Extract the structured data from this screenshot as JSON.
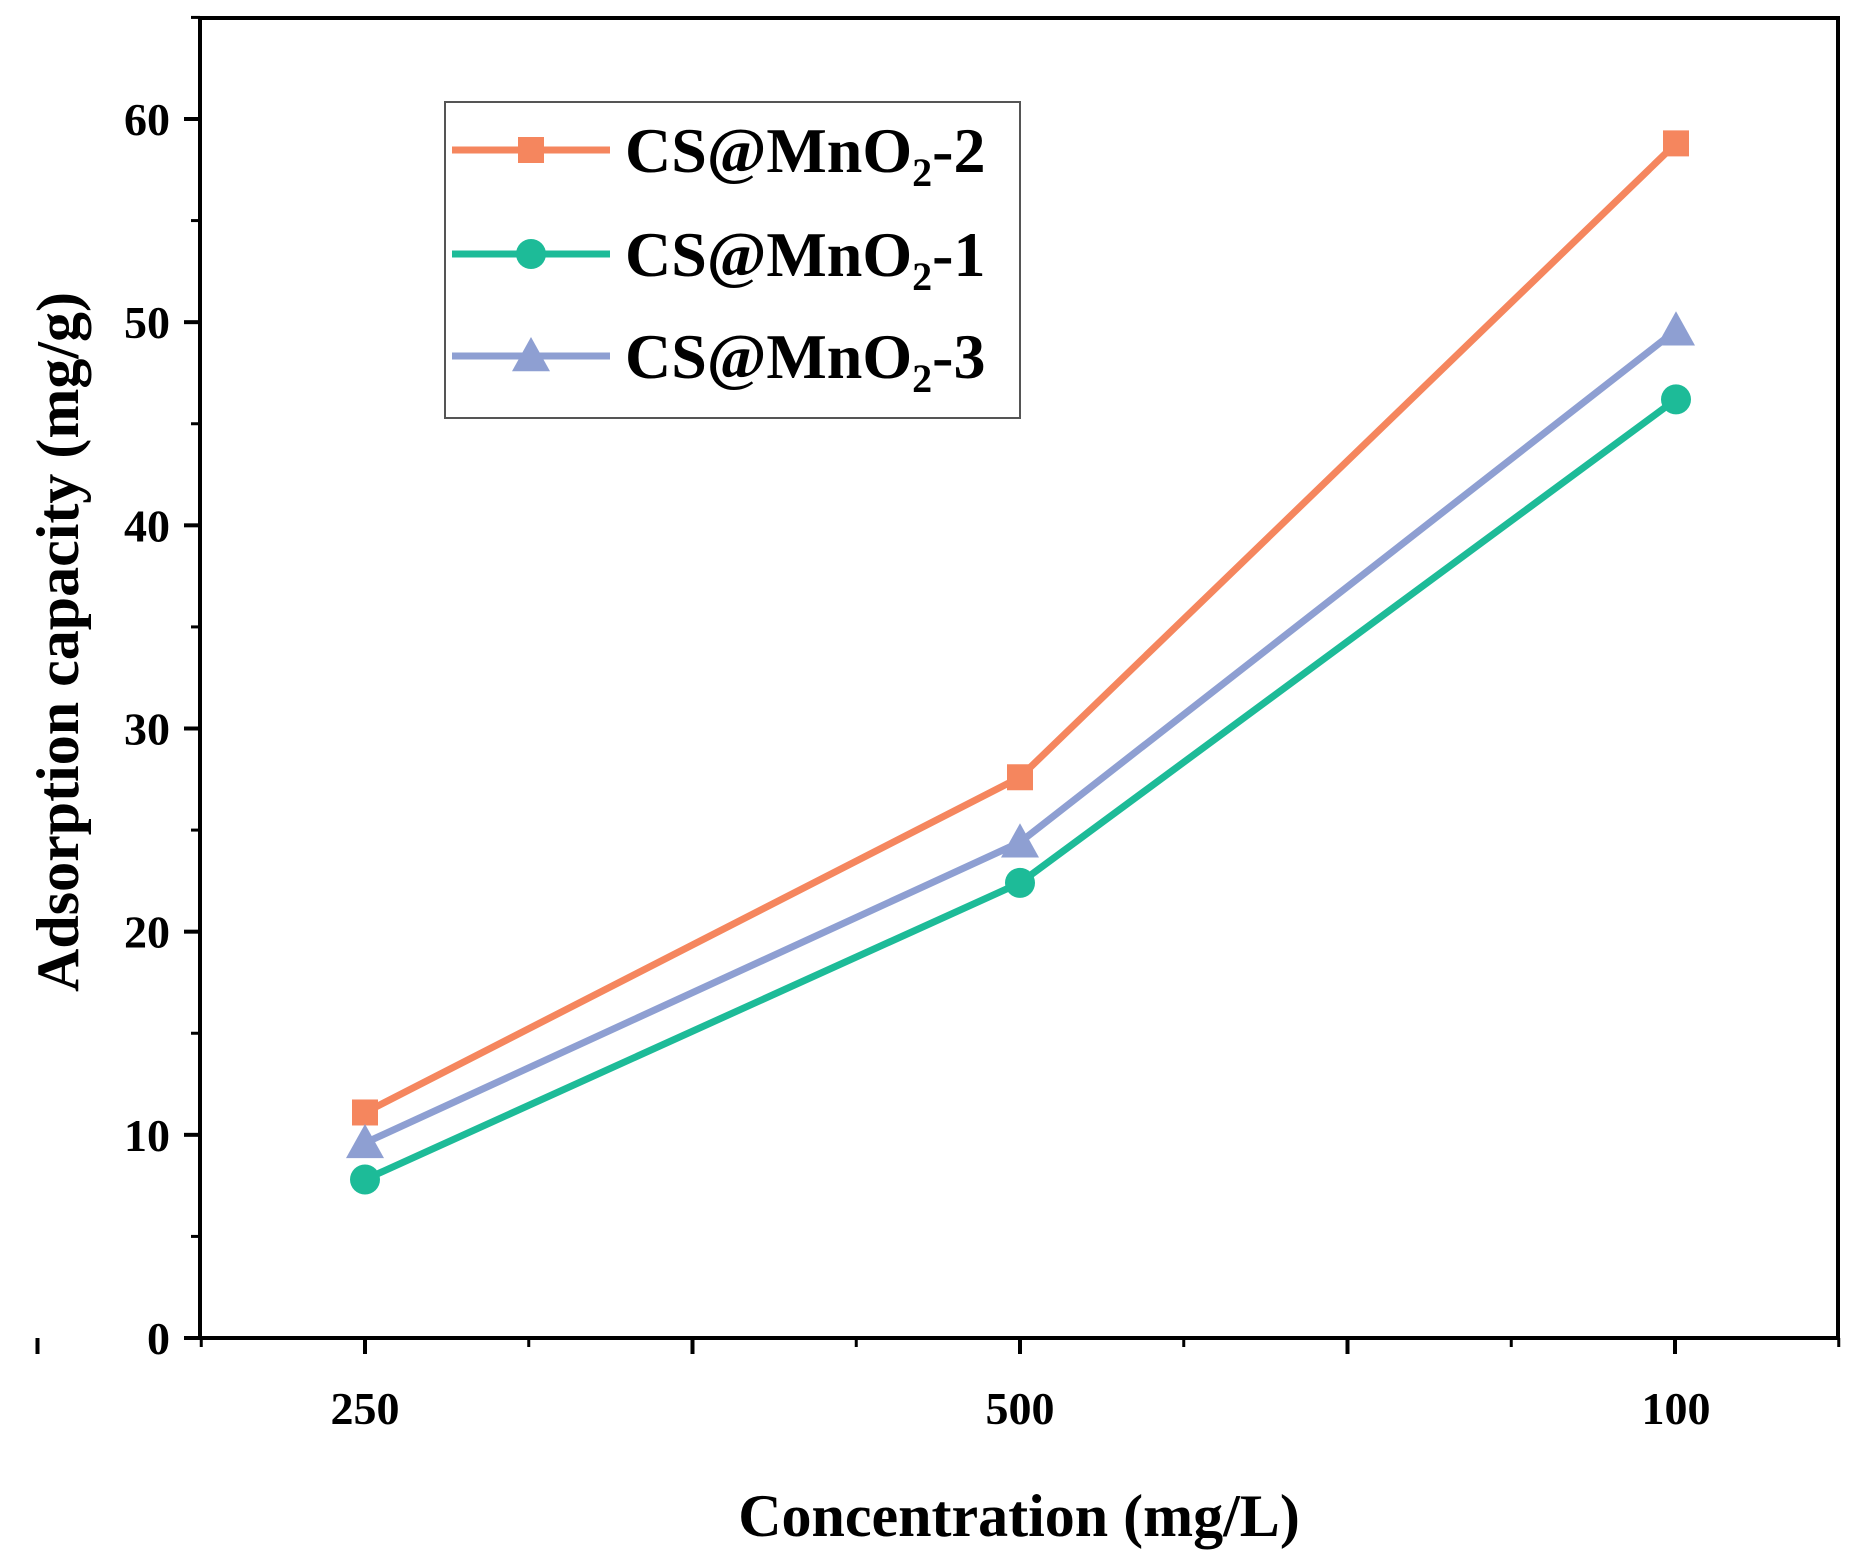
{
  "chart_data": {
    "type": "line",
    "title": "",
    "xlabel": "Concentration (mg/L)",
    "ylabel": "Adsorption capacity (mg/g)",
    "categories": [
      "250",
      "500",
      "100"
    ],
    "ylim": [
      0,
      65
    ],
    "yticks": [
      0,
      10,
      20,
      30,
      40,
      50,
      60
    ],
    "grid": false,
    "legend_position": "top-left",
    "series": [
      {
        "name": "CS@MnO2-2",
        "legend_base": "CS@MnO",
        "legend_sub": "2",
        "legend_suffix": "-2",
        "marker": "square",
        "color": "#f5865e",
        "values": [
          11.1,
          27.6,
          58.8
        ]
      },
      {
        "name": "CS@MnO2-1",
        "legend_base": "CS@MnO",
        "legend_sub": "2",
        "legend_suffix": "-1",
        "marker": "circle",
        "color": "#1dbb98",
        "values": [
          7.8,
          22.4,
          46.2
        ]
      },
      {
        "name": "CS@MnO2-3",
        "legend_base": "CS@MnO",
        "legend_sub": "2",
        "legend_suffix": "-3",
        "marker": "triangle",
        "color": "#8e9fd2",
        "values": [
          9.6,
          24.4,
          49.6
        ]
      }
    ]
  }
}
